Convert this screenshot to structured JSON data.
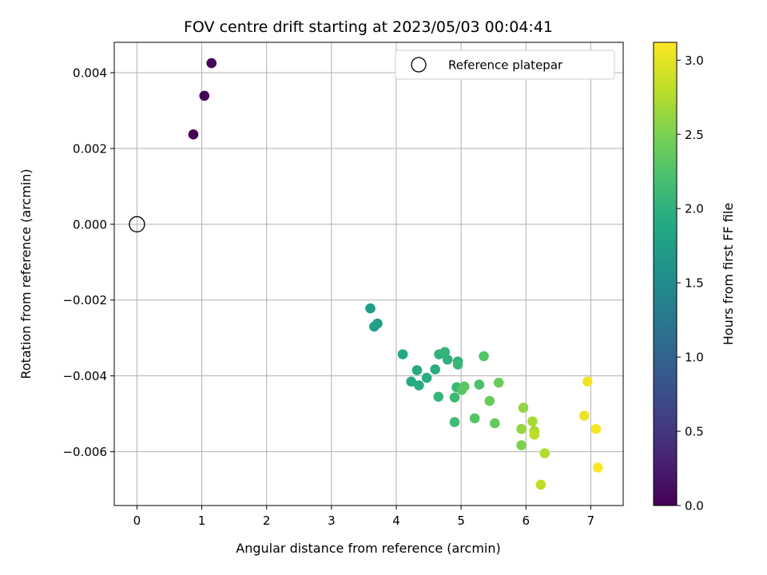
{
  "chart_data": {
    "type": "scatter",
    "title": "FOV centre drift starting at 2023/05/03 00:04:41",
    "xlabel": "Angular distance from reference (arcmin)",
    "ylabel": "Rotation from reference (arcmin)",
    "xlim": [
      -0.35,
      7.5
    ],
    "ylim": [
      -0.00742,
      0.0048
    ],
    "x_ticks": [
      0,
      1,
      2,
      3,
      4,
      5,
      6,
      7
    ],
    "y_ticks": [
      -0.006,
      -0.004,
      -0.002,
      0.0,
      0.002,
      0.004
    ],
    "y_tick_labels": [
      "−0.006",
      "−0.004",
      "−0.002",
      "0.000",
      "0.002",
      "0.004"
    ],
    "grid": true,
    "legend": {
      "placement": "top-right",
      "entries": [
        "Reference platepar"
      ]
    },
    "reference_point": {
      "x": 0,
      "y": 0
    },
    "colorbar": {
      "label": "Hours from first FF file",
      "colormap": "viridis",
      "range": [
        0,
        3.12
      ],
      "ticks": [
        0.0,
        0.5,
        1.0,
        1.5,
        2.0,
        2.5,
        3.0
      ],
      "tick_labels": [
        "0.0",
        "0.5",
        "1.0",
        "1.5",
        "2.0",
        "2.5",
        "3.0"
      ]
    },
    "points": [
      {
        "x": 0.87,
        "y": 0.00237,
        "hours": 0.0
      },
      {
        "x": 1.04,
        "y": 0.00339,
        "hours": 0.03
      },
      {
        "x": 1.15,
        "y": 0.00425,
        "hours": 0.06
      },
      {
        "x": 3.6,
        "y": -0.00222,
        "hours": 1.72
      },
      {
        "x": 3.66,
        "y": -0.0027,
        "hours": 1.74
      },
      {
        "x": 3.71,
        "y": -0.00262,
        "hours": 1.76
      },
      {
        "x": 4.1,
        "y": -0.00343,
        "hours": 1.88
      },
      {
        "x": 4.23,
        "y": -0.00415,
        "hours": 1.9
      },
      {
        "x": 4.32,
        "y": -0.00385,
        "hours": 1.9
      },
      {
        "x": 4.35,
        "y": -0.00425,
        "hours": 1.92
      },
      {
        "x": 4.47,
        "y": -0.00405,
        "hours": 1.94
      },
      {
        "x": 4.6,
        "y": -0.00383,
        "hours": 1.95
      },
      {
        "x": 4.66,
        "y": -0.00343,
        "hours": 2.02
      },
      {
        "x": 4.75,
        "y": -0.00337,
        "hours": 2.04
      },
      {
        "x": 4.79,
        "y": -0.00357,
        "hours": 2.0
      },
      {
        "x": 4.65,
        "y": -0.00455,
        "hours": 2.06
      },
      {
        "x": 4.93,
        "y": -0.0043,
        "hours": 2.1
      },
      {
        "x": 4.95,
        "y": -0.00362,
        "hours": 2.0
      },
      {
        "x": 4.95,
        "y": -0.0037,
        "hours": 2.07
      },
      {
        "x": 4.9,
        "y": -0.00457,
        "hours": 2.12
      },
      {
        "x": 5.01,
        "y": -0.00437,
        "hours": 2.3
      },
      {
        "x": 5.05,
        "y": -0.00428,
        "hours": 2.32
      },
      {
        "x": 4.9,
        "y": -0.00522,
        "hours": 2.14
      },
      {
        "x": 5.21,
        "y": -0.00512,
        "hours": 2.28
      },
      {
        "x": 5.28,
        "y": -0.00423,
        "hours": 2.22
      },
      {
        "x": 5.35,
        "y": -0.00348,
        "hours": 2.26
      },
      {
        "x": 5.44,
        "y": -0.00466,
        "hours": 2.4
      },
      {
        "x": 5.52,
        "y": -0.00525,
        "hours": 2.38
      },
      {
        "x": 5.58,
        "y": -0.00418,
        "hours": 2.42
      },
      {
        "x": 5.93,
        "y": -0.00583,
        "hours": 2.5
      },
      {
        "x": 5.96,
        "y": -0.00484,
        "hours": 2.6
      },
      {
        "x": 5.93,
        "y": -0.0054,
        "hours": 2.62
      },
      {
        "x": 6.1,
        "y": -0.0052,
        "hours": 2.7
      },
      {
        "x": 6.13,
        "y": -0.00545,
        "hours": 2.72
      },
      {
        "x": 6.13,
        "y": -0.00555,
        "hours": 2.8
      },
      {
        "x": 6.23,
        "y": -0.00687,
        "hours": 2.82
      },
      {
        "x": 6.29,
        "y": -0.00604,
        "hours": 2.75
      },
      {
        "x": 6.9,
        "y": -0.00505,
        "hours": 3.03
      },
      {
        "x": 6.95,
        "y": -0.00415,
        "hours": 3.05
      },
      {
        "x": 7.08,
        "y": -0.0054,
        "hours": 3.08
      },
      {
        "x": 7.11,
        "y": -0.00642,
        "hours": 3.1
      }
    ]
  }
}
